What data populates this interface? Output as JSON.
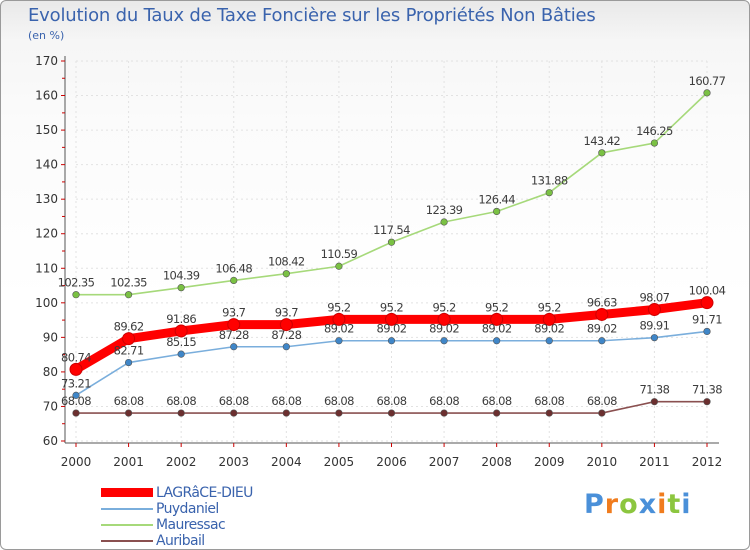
{
  "header": {
    "title": "Evolution du Taux de Taxe Foncière sur les Propriétés Non Bâties",
    "subtitle": "(en %)"
  },
  "logo": {
    "text": "Proxiti",
    "letters": [
      "P",
      "r",
      "o",
      "x",
      "i",
      "t",
      "i"
    ],
    "colors": [
      "#4a90d9",
      "#f07c1e",
      "#8cc63f",
      "#4a90d9",
      "#f07c1e",
      "#8cc63f",
      "#4a90d9"
    ]
  },
  "chart_data": {
    "type": "line",
    "title": "Evolution du Taux de Taxe Foncière sur les Propriétés Non Bâties",
    "ylabel": "(en %)",
    "xlabel": "",
    "ylim": [
      60,
      170
    ],
    "yticks": [
      60,
      70,
      80,
      90,
      100,
      110,
      120,
      130,
      140,
      150,
      160,
      170
    ],
    "x": [
      "2000",
      "2001",
      "2002",
      "2003",
      "2004",
      "2005",
      "2006",
      "2007",
      "2008",
      "2009",
      "2010",
      "2011",
      "2012"
    ],
    "grid": true,
    "legend_position": "bottom-left",
    "series": [
      {
        "name": "Mauressac",
        "color": "#a6d97a",
        "marker": "#7ac143",
        "values": [
          102.35,
          102.35,
          104.39,
          106.48,
          108.42,
          110.59,
          117.54,
          123.39,
          126.44,
          131.88,
          143.42,
          146.25,
          160.77
        ],
        "labels": [
          "102.35",
          "102.35",
          "104.39",
          "106.48",
          "108.42",
          "110.59",
          "117.54",
          "123.39",
          "126.44",
          "131.88",
          "143.42",
          "146.25",
          "160.77"
        ]
      },
      {
        "name": "Puydaniel",
        "color": "#7aaedc",
        "marker": "#3f86c8",
        "values": [
          73.21,
          82.71,
          85.15,
          87.28,
          87.28,
          89.02,
          89.02,
          89.02,
          89.02,
          89.02,
          89.02,
          89.91,
          91.71
        ],
        "labels": [
          "73.21",
          "82.71",
          "85.15",
          "87.28",
          "87.28",
          "89.02",
          "89.02",
          "89.02",
          "89.02",
          "89.02",
          "89.02",
          "89.91",
          "91.71"
        ]
      },
      {
        "name": "Auribail",
        "color": "#8a5050",
        "marker": "#6b2f2f",
        "values": [
          68.08,
          68.08,
          68.08,
          68.08,
          68.08,
          68.08,
          68.08,
          68.08,
          68.08,
          68.08,
          68.08,
          71.38,
          71.38
        ],
        "labels": [
          "68.08",
          "68.08",
          "68.08",
          "68.08",
          "68.08",
          "68.08",
          "68.08",
          "68.08",
          "68.08",
          "68.08",
          "68.08",
          "71.38",
          "71.38"
        ]
      },
      {
        "name": "LAGRâCE-DIEU",
        "color": "#ff0000",
        "marker": "#ff0000",
        "values": [
          80.74,
          89.62,
          91.86,
          93.7,
          93.7,
          95.2,
          95.2,
          95.2,
          95.2,
          95.2,
          96.63,
          98.07,
          100.04
        ],
        "labels": [
          "80.74",
          "89.62",
          "91.86",
          "93.7",
          "93.7",
          "95.2",
          "95.2",
          "95.2",
          "95.2",
          "95.2",
          "96.63",
          "98.07",
          "100.04"
        ]
      }
    ]
  },
  "legend": [
    {
      "name": "LAGRâCE-DIEU",
      "color": "#ff0000",
      "thick": true
    },
    {
      "name": "Puydaniel",
      "color": "#7aaedc",
      "thick": false
    },
    {
      "name": "Mauressac",
      "color": "#a6d97a",
      "thick": false
    },
    {
      "name": "Auribail",
      "color": "#8a5050",
      "thick": false
    }
  ]
}
